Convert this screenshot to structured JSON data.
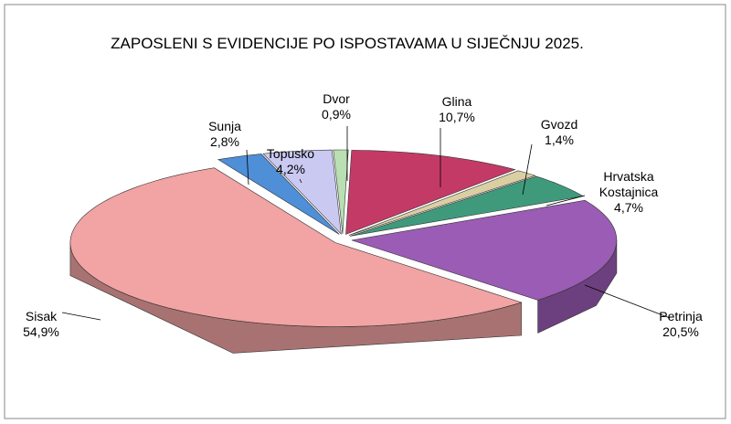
{
  "chart_data": {
    "type": "pie",
    "title": "ZAPOSLENI S EVIDENCIJE PO ISPOSTAVAMA U SIJEČNJU 2025.",
    "categories": [
      "Dvor",
      "Glina",
      "Gvozd",
      "Hrvatska Kostajnica",
      "Petrinja",
      "Sisak",
      "Sunja",
      "Topusko"
    ],
    "values": [
      0.9,
      10.7,
      1.4,
      4.7,
      20.5,
      54.9,
      2.8,
      4.2
    ],
    "value_labels": [
      "0,9%",
      "10,7%",
      "1,4%",
      "4,7%",
      "20,5%",
      "54,9%",
      "2,8%",
      "4,2%"
    ],
    "colors": [
      "#b9dfb2",
      "#c43a66",
      "#d9cfa2",
      "#3f9a7c",
      "#9a5cb4",
      "#f2a3a3",
      "#4f8fd8",
      "#c9c9f2"
    ]
  }
}
